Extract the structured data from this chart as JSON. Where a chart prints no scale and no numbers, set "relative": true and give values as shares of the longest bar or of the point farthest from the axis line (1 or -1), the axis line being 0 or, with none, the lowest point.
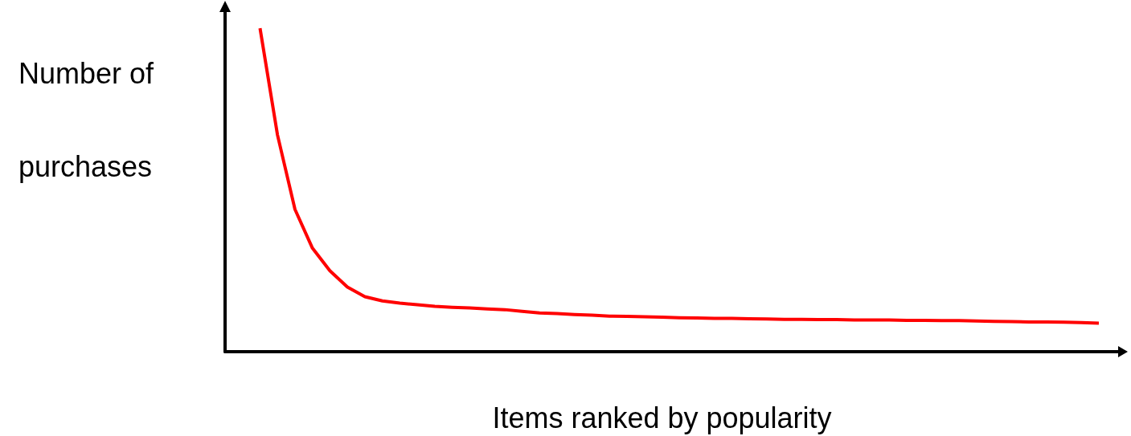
{
  "chart_data": {
    "type": "line",
    "relative": true,
    "xlabel": "Items ranked by popularity",
    "ylabel": "Number of purchases",
    "categories": [
      null,
      null,
      null,
      null,
      null,
      null,
      null,
      null,
      null,
      null,
      null,
      null,
      null,
      null,
      null,
      null,
      null,
      null,
      null,
      null,
      null,
      null,
      null,
      null,
      null,
      null,
      null,
      null,
      null,
      null,
      null,
      null,
      null,
      null,
      null,
      null,
      null,
      null,
      null,
      null,
      null,
      null,
      null,
      null,
      null,
      null,
      null,
      null,
      null,
      null,
      null
    ],
    "series": [
      {
        "color": "#ff0000",
        "values": [
          null,
          null,
          1.0,
          0.67,
          0.44,
          0.32,
          0.25,
          0.2,
          0.17,
          0.157,
          0.15,
          0.145,
          0.14,
          0.137,
          0.135,
          0.132,
          0.13,
          0.125,
          0.12,
          0.118,
          0.115,
          0.113,
          0.11,
          0.109,
          0.108,
          0.107,
          0.105,
          0.104,
          0.103,
          0.103,
          0.102,
          0.101,
          0.1,
          0.1,
          0.099,
          0.099,
          0.098,
          0.098,
          0.098,
          0.097,
          0.097,
          0.096,
          0.096,
          0.095,
          0.094,
          0.093,
          0.092,
          0.092,
          0.091,
          0.09,
          0.088
        ]
      }
    ],
    "grid": false,
    "marker": "none",
    "line_style": "solid"
  }
}
